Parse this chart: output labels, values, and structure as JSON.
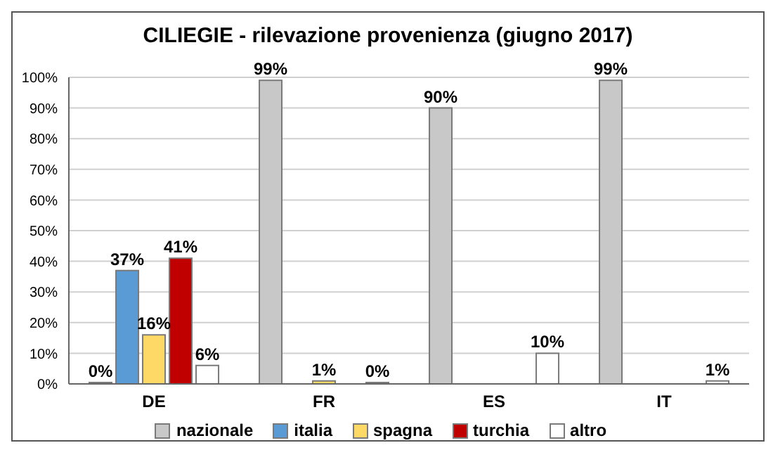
{
  "chart_data": {
    "type": "bar",
    "title": "CILIEGIE - rilevazione provenienza (giugno 2017)",
    "categories": [
      "DE",
      "FR",
      "ES",
      "IT"
    ],
    "series": [
      {
        "name": "nazionale",
        "color": "#c8c8c8",
        "values": [
          0,
          99,
          90,
          99
        ],
        "value_labels": [
          "0%",
          "99%",
          "90%",
          "99%"
        ]
      },
      {
        "name": "italia",
        "color": "#5b9bd5",
        "values": [
          37,
          null,
          null,
          null
        ],
        "value_labels": [
          "37%",
          null,
          null,
          null
        ]
      },
      {
        "name": "spagna",
        "color": "#ffd966",
        "values": [
          16,
          1,
          null,
          null
        ],
        "value_labels": [
          "16%",
          "1%",
          null,
          null
        ]
      },
      {
        "name": "turchia",
        "color": "#c00000",
        "values": [
          41,
          null,
          null,
          null
        ],
        "value_labels": [
          "41%",
          null,
          null,
          null
        ]
      },
      {
        "name": "altro",
        "color": "#ffffff",
        "values": [
          6,
          0,
          10,
          1
        ],
        "value_labels": [
          "6%",
          "0%",
          "10%",
          "1%"
        ]
      }
    ],
    "ylim": [
      0,
      100
    ],
    "yticks": [
      {
        "value": 0,
        "label": "0%"
      },
      {
        "value": 10,
        "label": "10%"
      },
      {
        "value": 20,
        "label": "20%"
      },
      {
        "value": 30,
        "label": "30%"
      },
      {
        "value": 40,
        "label": "40%"
      },
      {
        "value": 50,
        "label": "50%"
      },
      {
        "value": 60,
        "label": "60%"
      },
      {
        "value": 70,
        "label": "70%"
      },
      {
        "value": 80,
        "label": "80%"
      },
      {
        "value": 90,
        "label": "90%"
      },
      {
        "value": 100,
        "label": "100%"
      }
    ],
    "grid": "y",
    "legend": "bottom"
  }
}
